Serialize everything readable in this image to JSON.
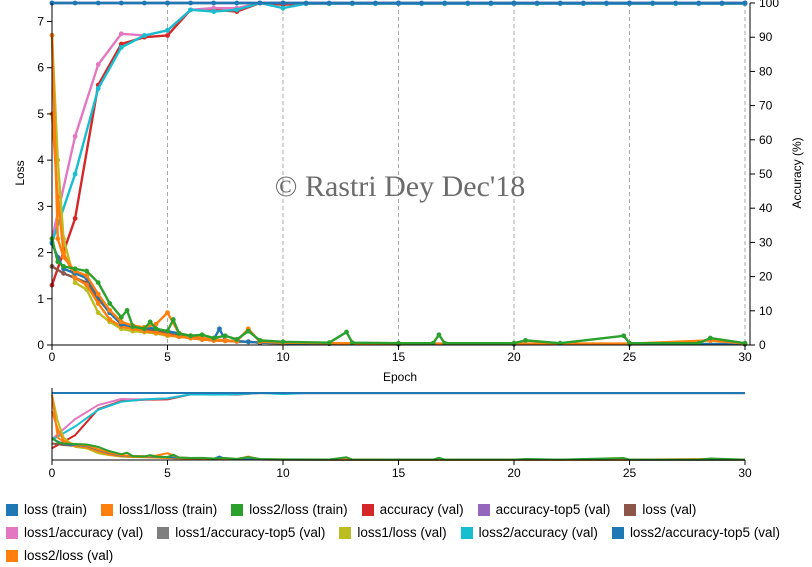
{
  "chart_data": {
    "type": "line",
    "watermark": "© Rastri Dey Dec'18",
    "main": {
      "xlabel": "Epoch",
      "ylabel_left": "Loss",
      "ylabel_right": "Accuracy (%)",
      "xlim": [
        0,
        30
      ],
      "ylim_left": [
        0,
        7.4
      ],
      "ylim_right": [
        0,
        100
      ],
      "xticks": [
        0,
        5,
        10,
        15,
        20,
        25,
        30
      ],
      "yticks_left": [
        0,
        1,
        2,
        3,
        4,
        5,
        6,
        7
      ],
      "yticks_right": [
        0,
        10,
        20,
        30,
        40,
        50,
        60,
        70,
        80,
        90,
        100
      ],
      "grid": "vertical dashed at x ticks"
    },
    "overview": {
      "xlim": [
        0,
        30
      ],
      "xticks": [
        0,
        5,
        10,
        15,
        20,
        25,
        30
      ]
    },
    "colors": {
      "loss_train": "#1f77b4",
      "loss1_loss_train": "#ff7f0e",
      "loss2_loss_train": "#2ca02c",
      "accuracy_val": "#d62728",
      "accuracy_top5_val": "#9467bd",
      "loss_val": "#8c564b",
      "loss1_accuracy_val": "#e377c2",
      "loss1_accuracy_top5_val": "#7f7f7f",
      "loss1_loss_val": "#bcbd22",
      "loss2_accuracy_val": "#17becf",
      "loss2_accuracy_top5_val": "#1f77b4",
      "loss2_loss_val": "#ff7f0e"
    },
    "legend": {
      "placement": "bottom",
      "rows": [
        [
          {
            "key": "loss_train",
            "label": "loss (train)"
          },
          {
            "key": "loss1_loss_train",
            "label": "loss1/loss (train)"
          },
          {
            "key": "loss2_loss_train",
            "label": "loss2/loss (train)"
          },
          {
            "key": "accuracy_val",
            "label": "accuracy (val)"
          },
          {
            "key": "accuracy_top5_val",
            "label": "accuracy-top5 (val)"
          },
          {
            "key": "loss_val",
            "label": "loss (val)"
          }
        ],
        [
          {
            "key": "loss1_accuracy_val",
            "label": "loss1/accuracy (val)"
          },
          {
            "key": "loss1_accuracy_top5_val",
            "label": "loss1/accuracy-top5 (val)"
          },
          {
            "key": "loss1_loss_val",
            "label": "loss1/loss (val)"
          },
          {
            "key": "loss2_accuracy_val",
            "label": "loss2/accuracy (val)"
          },
          {
            "key": "loss2_accuracy_top5_val",
            "label": "loss2/accuracy-top5 (val)"
          }
        ],
        [
          {
            "key": "loss2_loss_val",
            "label": "loss2/loss (val)"
          }
        ]
      ]
    },
    "series": [
      {
        "name": "accuracy (val)",
        "key": "accuracy_val",
        "axis": "right",
        "x": [
          0,
          1,
          2,
          3,
          4,
          5,
          6,
          7,
          8,
          9,
          10,
          11,
          12,
          13,
          14,
          15,
          16,
          17,
          18,
          19,
          20,
          21,
          22,
          23,
          24,
          25,
          26,
          27,
          28,
          29,
          30
        ],
        "y": [
          17.5,
          37,
          76,
          88,
          90,
          90.5,
          98,
          98,
          97.5,
          100,
          99.5,
          99.8,
          99.8,
          99.8,
          99.8,
          99.8,
          99.8,
          99.8,
          99.8,
          99.8,
          99.8,
          99.8,
          99.8,
          99.8,
          99.8,
          99.8,
          99.8,
          99.8,
          99.8,
          99.8,
          99.8
        ]
      },
      {
        "name": "loss1/accuracy (val)",
        "key": "loss1_accuracy_val",
        "axis": "right",
        "x": [
          0,
          1,
          2,
          3,
          4,
          5,
          6,
          7,
          8,
          9,
          10,
          11,
          12,
          13,
          14,
          15,
          16,
          17,
          18,
          19,
          20,
          21,
          22,
          23,
          24,
          25,
          26,
          27,
          28,
          29,
          30
        ],
        "y": [
          31,
          61,
          82,
          91,
          90.5,
          92,
          98,
          98.5,
          98.5,
          100,
          100,
          99.8,
          99.8,
          99.8,
          99.8,
          99.8,
          99.8,
          99.8,
          99.8,
          99.8,
          99.8,
          99.8,
          99.8,
          99.8,
          99.8,
          99.8,
          99.8,
          99.8,
          99.8,
          99.8,
          99.8
        ]
      },
      {
        "name": "loss2/accuracy (val)",
        "key": "loss2_accuracy_val",
        "axis": "right",
        "x": [
          0,
          1,
          2,
          3,
          4,
          5,
          6,
          7,
          8,
          9,
          10,
          11,
          12,
          13,
          14,
          15,
          16,
          17,
          18,
          19,
          20,
          21,
          22,
          23,
          24,
          25,
          26,
          27,
          28,
          29,
          30
        ],
        "y": [
          30,
          50,
          75,
          87,
          90.5,
          92,
          98,
          97.5,
          98,
          100,
          98.5,
          99.8,
          99.8,
          99.8,
          99.8,
          99.8,
          99.8,
          99.8,
          99.8,
          99.8,
          99.8,
          99.8,
          99.8,
          99.8,
          99.8,
          99.8,
          99.8,
          99.8,
          99.8,
          99.8,
          99.8
        ]
      },
      {
        "name": "accuracy-top5 (val)",
        "key": "accuracy_top5_val",
        "axis": "right",
        "x": [
          0,
          5,
          10,
          15,
          20,
          25,
          30
        ],
        "y": [
          100,
          100,
          100,
          100,
          100,
          100,
          100
        ]
      },
      {
        "name": "loss1/accuracy-top5 (val)",
        "key": "loss1_accuracy_top5_val",
        "axis": "right",
        "x": [
          0,
          5,
          10,
          15,
          20,
          25,
          30
        ],
        "y": [
          100,
          100,
          100,
          100,
          100,
          100,
          100
        ]
      },
      {
        "name": "loss2/accuracy-top5 (val)",
        "key": "loss2_accuracy_top5_val",
        "axis": "right",
        "x": [
          0,
          1,
          2,
          3,
          4,
          5,
          6,
          7,
          8,
          9,
          10,
          11,
          12,
          13,
          14,
          15,
          16,
          17,
          18,
          19,
          20,
          21,
          22,
          23,
          24,
          25,
          26,
          27,
          28,
          29,
          30
        ],
        "y": [
          100,
          100,
          100,
          100,
          100,
          100,
          100,
          100,
          100,
          100,
          100,
          100,
          100,
          100,
          100,
          100,
          100,
          100,
          100,
          100,
          100,
          100,
          100,
          100,
          100,
          100,
          100,
          100,
          100,
          100,
          100
        ]
      },
      {
        "name": "loss (val)",
        "key": "loss_val",
        "axis": "left",
        "x": [
          0,
          0.5,
          1,
          1.5,
          2,
          2.5,
          3,
          3.5,
          4,
          4.5,
          5,
          5.5,
          6,
          6.5,
          7,
          7.5,
          8,
          8.5,
          9,
          10,
          12,
          15,
          20,
          25,
          30
        ],
        "y": [
          1.7,
          1.55,
          1.45,
          1.35,
          1.0,
          0.7,
          0.45,
          0.4,
          0.35,
          0.3,
          0.25,
          0.2,
          0.15,
          0.12,
          0.1,
          0.09,
          0.08,
          0.07,
          0.05,
          0.04,
          0.03,
          0.02,
          0.02,
          0.02,
          0.02
        ]
      },
      {
        "name": "loss1/loss (val)",
        "key": "loss1_loss_val",
        "axis": "left",
        "x": [
          0,
          0.25,
          0.5,
          1,
          1.5,
          2,
          2.5,
          3,
          3.5,
          4,
          4.5,
          5,
          5.5,
          6,
          6.5,
          7,
          7.5,
          8,
          8.5,
          9,
          10,
          12,
          15,
          20,
          25,
          30
        ],
        "y": [
          6.7,
          4.0,
          2.3,
          1.35,
          1.2,
          0.7,
          0.5,
          0.35,
          0.3,
          0.28,
          0.25,
          0.2,
          0.18,
          0.15,
          0.12,
          0.1,
          0.09,
          0.08,
          0.07,
          0.05,
          0.04,
          0.03,
          0.02,
          0.02,
          0.02,
          0.02
        ]
      },
      {
        "name": "loss2/loss (val)",
        "key": "loss2_loss_val",
        "axis": "left",
        "x": [
          0,
          0.25,
          0.5,
          1,
          1.5,
          2,
          2.5,
          3,
          3.5,
          4,
          4.5,
          5,
          5.5,
          6,
          6.5,
          7,
          7.5,
          8,
          8.5,
          9,
          10,
          12,
          15,
          20,
          25,
          30
        ],
        "y": [
          5.0,
          3.2,
          2.0,
          1.45,
          1.3,
          0.9,
          0.55,
          0.4,
          0.35,
          0.3,
          0.27,
          0.22,
          0.18,
          0.15,
          0.12,
          0.1,
          0.09,
          0.08,
          0.07,
          0.05,
          0.04,
          0.03,
          0.02,
          0.02,
          0.02,
          0.02
        ]
      },
      {
        "name": "loss (train)",
        "key": "loss_train",
        "axis": "left",
        "x": [
          0,
          0.25,
          0.5,
          1,
          1.5,
          2,
          2.5,
          3,
          3.5,
          4,
          4.5,
          5,
          5.5,
          6,
          6.5,
          7,
          7.25,
          7.5,
          8,
          8.5,
          9,
          10,
          12,
          15,
          20,
          25,
          30
        ],
        "y": [
          2.2,
          1.9,
          1.65,
          1.55,
          1.45,
          1.05,
          0.7,
          0.45,
          0.4,
          0.38,
          0.35,
          0.3,
          0.25,
          0.2,
          0.15,
          0.12,
          0.35,
          0.1,
          0.08,
          0.07,
          0.05,
          0.04,
          0.03,
          0.02,
          0.02,
          0.02,
          0.02
        ]
      },
      {
        "name": "loss1/loss (train)",
        "key": "loss1_loss_train",
        "axis": "left",
        "x": [
          0,
          0.25,
          0.5,
          1,
          1.5,
          2,
          2.5,
          3,
          3.5,
          4,
          4.5,
          5,
          5.5,
          6,
          6.5,
          7,
          7.5,
          8,
          8.5,
          9,
          10,
          12,
          15,
          20,
          25,
          28.5,
          30
        ],
        "y": [
          6.7,
          2.3,
          1.9,
          1.6,
          1.5,
          1.1,
          0.75,
          0.5,
          0.42,
          0.38,
          0.45,
          0.7,
          0.25,
          0.2,
          0.15,
          0.12,
          0.1,
          0.08,
          0.35,
          0.07,
          0.05,
          0.04,
          0.03,
          0.03,
          0.03,
          0.1,
          0.03
        ]
      },
      {
        "name": "loss2/loss (train)",
        "key": "loss2_loss_train",
        "axis": "left",
        "x": [
          0,
          0.25,
          0.5,
          1,
          1.5,
          2,
          2.5,
          3,
          3.25,
          3.5,
          4,
          4.25,
          4.5,
          5,
          5.25,
          5.5,
          6,
          6.5,
          7,
          7.5,
          8,
          8.5,
          9,
          10,
          12,
          12.75,
          13,
          15,
          16.5,
          16.75,
          17,
          20,
          20.5,
          22,
          24.75,
          25,
          28,
          28.5,
          30
        ],
        "y": [
          2.3,
          1.8,
          1.7,
          1.65,
          1.6,
          1.35,
          0.9,
          0.6,
          0.75,
          0.4,
          0.35,
          0.5,
          0.35,
          0.3,
          0.55,
          0.25,
          0.2,
          0.22,
          0.15,
          0.2,
          0.12,
          0.3,
          0.1,
          0.07,
          0.05,
          0.28,
          0.05,
          0.04,
          0.04,
          0.22,
          0.04,
          0.04,
          0.1,
          0.04,
          0.2,
          0.04,
          0.04,
          0.15,
          0.04
        ]
      }
    ]
  }
}
